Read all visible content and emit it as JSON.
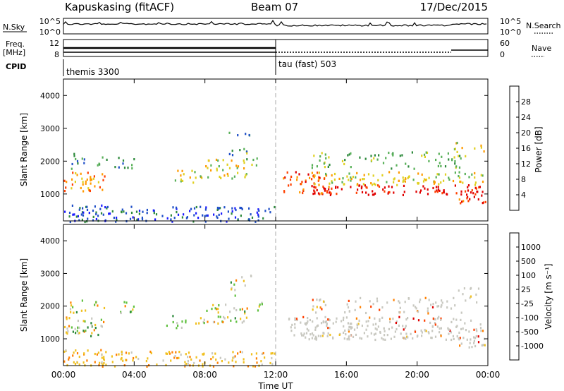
{
  "header": {
    "station": "Kapuskasing (fitACF)",
    "beam": "Beam 07",
    "date": "17/Dec/2015"
  },
  "top_panels": {
    "nsky_label": "N.Sky",
    "nsky_ticks": [
      "10^5",
      "10^0"
    ],
    "nsearch_label": "N.Search",
    "nsearch_ticks": [
      "10^5",
      "10^0"
    ],
    "freq_label_1": "Freq.",
    "freq_label_2": "[MHz]",
    "freq_ticks": [
      "12",
      "8"
    ],
    "nave_label": "Nave",
    "nave_ticks": [
      "60",
      "0"
    ],
    "cpid_label": "CPID",
    "cpid_modes": [
      "themis 3300",
      "tau (fast) 503"
    ]
  },
  "chart_data": [
    {
      "type": "heatmap",
      "name": "power-panel",
      "ylabel": "Slant Range [km]",
      "yticks": [
        "4000",
        "3000",
        "2000",
        "1000"
      ],
      "ylim": [
        180,
        4500
      ],
      "xlim": [
        0,
        24
      ],
      "colorbar_label": "Power [dB]",
      "colorbar_ticks": [
        "28",
        "24",
        "20",
        "16",
        "12",
        "8",
        "4"
      ],
      "colors": [
        "#1a1aff",
        "#2050c8",
        "#2e8a3c",
        "#58b058",
        "#e0d020",
        "#ff9a00",
        "#ff4000",
        "#e00000"
      ]
    },
    {
      "type": "heatmap",
      "name": "velocity-panel",
      "ylabel": "Slant Range [km]",
      "yticks": [
        "4000",
        "3000",
        "2000",
        "1000"
      ],
      "ylim": [
        180,
        4500
      ],
      "xlim": [
        0,
        24
      ],
      "xlabel": "Time UT",
      "xticks": [
        "00:00",
        "04:00",
        "08:00",
        "12:00",
        "16:00",
        "20:00",
        "00:00"
      ],
      "colorbar_label": "Velocity [m s⁻¹]",
      "colorbar_ticks": [
        "1000",
        "500",
        "100",
        "25",
        "-25",
        "-100",
        "-500",
        "-1000"
      ],
      "colors": [
        "#2030c0",
        "#3080b0",
        "#2e8a3c",
        "#60c040",
        "#c8c8c0",
        "#f0c020",
        "#ff8000",
        "#ff4000",
        "#e00000"
      ]
    }
  ]
}
